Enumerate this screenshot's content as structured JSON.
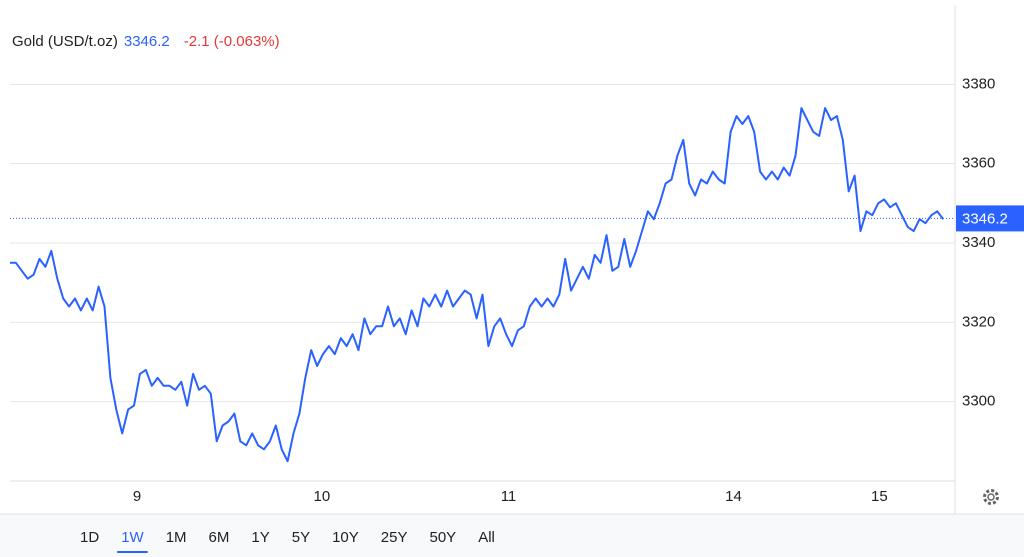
{
  "chart_data": {
    "type": "line",
    "title": "Gold (USD/t.oz)",
    "last_price": 3346.2,
    "change": "-2.1 (-0.063%)",
    "color": "#2962ff",
    "change_color": "#e53935",
    "x": [
      0,
      1,
      2,
      3,
      4,
      5,
      6,
      7,
      8,
      9,
      10,
      11,
      12,
      13,
      14,
      15,
      16,
      17,
      18,
      19,
      20,
      21,
      22,
      23,
      24,
      25,
      26,
      27,
      28,
      29,
      30,
      31,
      32,
      33,
      34,
      35,
      36,
      37,
      38,
      39,
      40,
      41,
      42,
      43,
      44,
      45,
      46,
      47,
      48,
      49,
      50,
      51,
      52,
      53,
      54,
      55,
      56,
      57,
      58,
      59,
      60,
      61,
      62,
      63,
      64,
      65,
      66,
      67,
      68,
      69,
      70,
      71,
      72,
      73,
      74,
      75,
      76,
      77,
      78,
      79,
      80,
      81,
      82,
      83,
      84,
      85,
      86,
      87,
      88,
      89,
      90,
      91,
      92,
      93,
      94,
      95,
      96,
      97,
      98,
      99,
      100,
      101,
      102,
      103,
      104,
      105,
      106,
      107,
      108,
      109,
      110,
      111,
      112,
      113,
      114,
      115,
      116,
      117,
      118,
      119,
      120,
      121,
      122,
      123,
      124,
      125,
      126,
      127,
      128,
      129,
      130,
      131,
      132,
      133,
      134,
      135,
      136,
      137,
      138,
      139,
      140,
      141,
      142,
      143,
      144,
      145,
      146,
      147,
      148,
      149,
      150,
      151,
      152,
      153,
      154,
      155,
      156,
      157,
      158
    ],
    "values": [
      3335,
      3335,
      3333,
      3331,
      3332,
      3336,
      3334,
      3338,
      3331,
      3326,
      3324,
      3326,
      3323,
      3326,
      3323,
      3329,
      3324,
      3306,
      3298,
      3292,
      3298,
      3299,
      3307,
      3308,
      3304,
      3306,
      3304,
      3304,
      3303,
      3305,
      3299,
      3307,
      3303,
      3304,
      3302,
      3290,
      3294,
      3295,
      3297,
      3290,
      3289,
      3292,
      3289,
      3288,
      3290,
      3294,
      3288,
      3285,
      3292,
      3297,
      3306,
      3313,
      3309,
      3312,
      3314,
      3312,
      3316,
      3314,
      3317,
      3313,
      3321,
      3317,
      3319,
      3319,
      3324,
      3319,
      3321,
      3317,
      3323,
      3319,
      3326,
      3324,
      3327,
      3324,
      3328,
      3324,
      3326,
      3328,
      3327,
      3321,
      3327,
      3314,
      3319,
      3321,
      3317,
      3314,
      3318,
      3319,
      3324,
      3326,
      3324,
      3326,
      3324,
      3327,
      3336,
      3328,
      3331,
      3334,
      3331,
      3337,
      3335,
      3342,
      3333,
      3334,
      3341,
      3334,
      3338,
      3343,
      3348,
      3346,
      3350,
      3355,
      3356,
      3362,
      3366,
      3355,
      3352,
      3356,
      3355,
      3358,
      3356,
      3355,
      3368,
      3372,
      3370,
      3372,
      3368,
      3358,
      3356,
      3358,
      3356,
      3359,
      3357,
      3362,
      3374,
      3371,
      3368,
      3367,
      3374,
      3371,
      3372,
      3366,
      3353,
      3357,
      3343,
      3348,
      3347,
      3350,
      3351,
      3349,
      3350,
      3347,
      3344,
      3343,
      3346,
      3345,
      3347,
      3348,
      3346
    ],
    "xlim": [
      0,
      160
    ],
    "xticks": [
      {
        "value": 21.5,
        "label": "9"
      },
      {
        "value": 52.8,
        "label": "10"
      },
      {
        "value": 84.4,
        "label": "11"
      },
      {
        "value": 122.5,
        "label": "14"
      },
      {
        "value": 147.2,
        "label": "15"
      }
    ],
    "ylim": [
      3280,
      3400
    ],
    "yticks": [
      3300,
      3320,
      3340,
      3360,
      3380
    ],
    "grid": true,
    "ranges": [
      "1D",
      "1W",
      "1M",
      "6M",
      "1Y",
      "5Y",
      "10Y",
      "25Y",
      "50Y",
      "All"
    ],
    "selected_range": "1W"
  }
}
